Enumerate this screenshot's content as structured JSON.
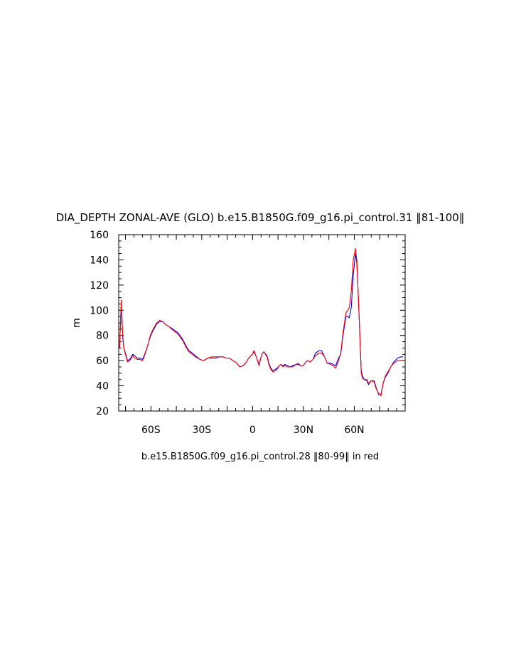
{
  "chart_data": {
    "type": "line",
    "title": "DIA_DEPTH ZONAL-AVE (GLO) b.e15.B1850G.f09_g16.pi_control.31 ‖81-100‖",
    "caption": "b.e15.B1850G.f09_g16.pi_control.28 ‖80-99‖ in red",
    "xlabel": "",
    "ylabel": "m",
    "xlim": [
      -79,
      90
    ],
    "ylim": [
      20,
      160
    ],
    "x_ticks": [
      {
        "value": -60,
        "label": "60S"
      },
      {
        "value": -30,
        "label": "30S"
      },
      {
        "value": 0,
        "label": "0"
      },
      {
        "value": 30,
        "label": "30N"
      },
      {
        "value": 60,
        "label": "60N"
      }
    ],
    "y_ticks": [
      20,
      40,
      60,
      80,
      100,
      120,
      140,
      160
    ],
    "grid": false,
    "series": [
      {
        "color": "#0000ff",
        "x": [
          -78.5,
          -77.5,
          -76.6,
          -76.0,
          -75.0,
          -73.8,
          -72.5,
          -70.7,
          -69.6,
          -68.1,
          -66.6,
          -65.0,
          -64.0,
          -61.9,
          -60.4,
          -58.7,
          -56.6,
          -54.9,
          -52.9,
          -51.7,
          -49.3,
          -46.9,
          -44.0,
          -41.3,
          -39.4,
          -37.6,
          -35.6,
          -33.8,
          -31.1,
          -28.8,
          -26.5,
          -24.0,
          -21.8,
          -19.6,
          -17.4,
          -15.7,
          -13.8,
          -11.6,
          -9.2,
          -7.6,
          -5.6,
          -4.1,
          -2.3,
          -0.2,
          0.8,
          2.2,
          3.8,
          5.4,
          6.6,
          8.5,
          9.6,
          10.8,
          12.0,
          13.4,
          14.4,
          15.7,
          16.7,
          17.9,
          19.1,
          20.5,
          21.9,
          23.6,
          25.6,
          27.0,
          28.2,
          29.8,
          31.0,
          32.3,
          34.0,
          35.6,
          37.1,
          39.3,
          40.7,
          42.5,
          44.0,
          46.1,
          47.5,
          49.0,
          50.7,
          52.0,
          53.3,
          55.1,
          56.1,
          57.0,
          58.2,
          59.4,
          60.7,
          61.5,
          62.4,
          63.3,
          64.1,
          64.8,
          65.9,
          67.5,
          68.4,
          69.9,
          71.7,
          72.8,
          74.4,
          75.7,
          77.0,
          78.4,
          79.8,
          81.5,
          83.3,
          85.5,
          87.5,
          88.8
        ],
        "y": [
          70,
          105,
          78,
          70,
          66,
          60,
          61,
          65,
          64,
          62,
          62,
          61,
          64,
          72,
          79,
          84,
          89,
          91,
          91,
          89,
          87,
          85,
          82,
          77,
          72,
          68,
          66,
          64,
          61,
          60,
          62,
          62,
          62,
          63,
          63,
          62,
          62,
          60,
          58,
          55,
          56,
          58,
          62,
          65,
          67,
          63,
          57,
          65,
          67,
          64,
          58,
          54,
          52,
          53,
          54,
          56,
          57,
          56,
          57,
          56,
          55,
          56,
          57,
          57,
          56,
          56,
          58,
          60,
          59,
          61,
          66,
          68,
          68,
          63,
          58,
          58,
          57,
          56,
          62,
          65,
          80,
          95,
          95,
          94,
          102,
          128,
          145,
          137,
          110,
          80,
          52,
          48,
          45,
          44,
          41,
          44,
          44,
          39,
          33,
          33,
          42,
          47,
          50,
          55,
          59,
          62,
          63,
          63
        ]
      },
      {
        "color": "#ff0000",
        "x": [
          -78.5,
          -77.5,
          -76.6,
          -76.0,
          -75.0,
          -73.8,
          -72.5,
          -70.7,
          -69.6,
          -68.1,
          -66.6,
          -65.0,
          -64.0,
          -61.9,
          -60.4,
          -58.7,
          -56.6,
          -54.9,
          -52.9,
          -51.7,
          -49.3,
          -46.9,
          -44.0,
          -41.3,
          -39.4,
          -37.6,
          -35.6,
          -33.8,
          -31.1,
          -28.8,
          -26.5,
          -24.0,
          -21.8,
          -19.6,
          -17.4,
          -15.7,
          -13.8,
          -11.6,
          -9.2,
          -7.6,
          -5.6,
          -4.1,
          -2.3,
          -0.2,
          0.8,
          2.2,
          3.8,
          5.4,
          6.6,
          8.5,
          9.6,
          10.8,
          12.0,
          13.4,
          14.4,
          15.7,
          16.7,
          17.9,
          19.1,
          20.5,
          21.9,
          23.6,
          25.6,
          27.0,
          28.2,
          29.8,
          31.0,
          32.3,
          34.0,
          35.6,
          37.1,
          39.3,
          40.7,
          42.5,
          44.0,
          46.1,
          47.5,
          49.0,
          50.7,
          52.0,
          53.3,
          55.1,
          56.1,
          57.0,
          58.2,
          59.4,
          60.7,
          61.5,
          62.4,
          63.3,
          64.1,
          64.8,
          65.9,
          67.5,
          68.4,
          69.9,
          71.7,
          72.8,
          74.4,
          75.7,
          77.0,
          78.4,
          79.8,
          81.5,
          83.3,
          85.5,
          87.5,
          88.8
        ],
        "y": [
          70,
          108,
          80,
          70,
          65,
          59,
          60,
          64,
          62,
          61,
          61,
          60,
          63,
          72,
          80,
          85,
          90,
          92,
          91,
          89,
          87,
          84,
          81,
          76,
          71,
          67,
          65,
          63,
          61,
          60,
          62,
          63,
          63,
          63,
          63,
          62,
          62,
          60,
          58,
          55,
          56,
          58,
          62,
          65,
          68,
          63,
          56,
          65,
          67,
          63,
          57,
          53,
          51,
          52,
          53,
          56,
          57,
          55,
          56,
          55,
          55,
          55,
          57,
          58,
          56,
          56,
          58,
          60,
          59,
          61,
          64,
          66,
          66,
          63,
          58,
          57,
          56,
          54,
          60,
          66,
          82,
          98,
          100,
          102,
          115,
          140,
          149,
          140,
          110,
          80,
          50,
          46,
          45,
          45,
          42,
          44,
          43,
          38,
          34,
          32,
          42,
          48,
          51,
          55,
          58,
          60,
          60,
          60
        ]
      }
    ]
  }
}
